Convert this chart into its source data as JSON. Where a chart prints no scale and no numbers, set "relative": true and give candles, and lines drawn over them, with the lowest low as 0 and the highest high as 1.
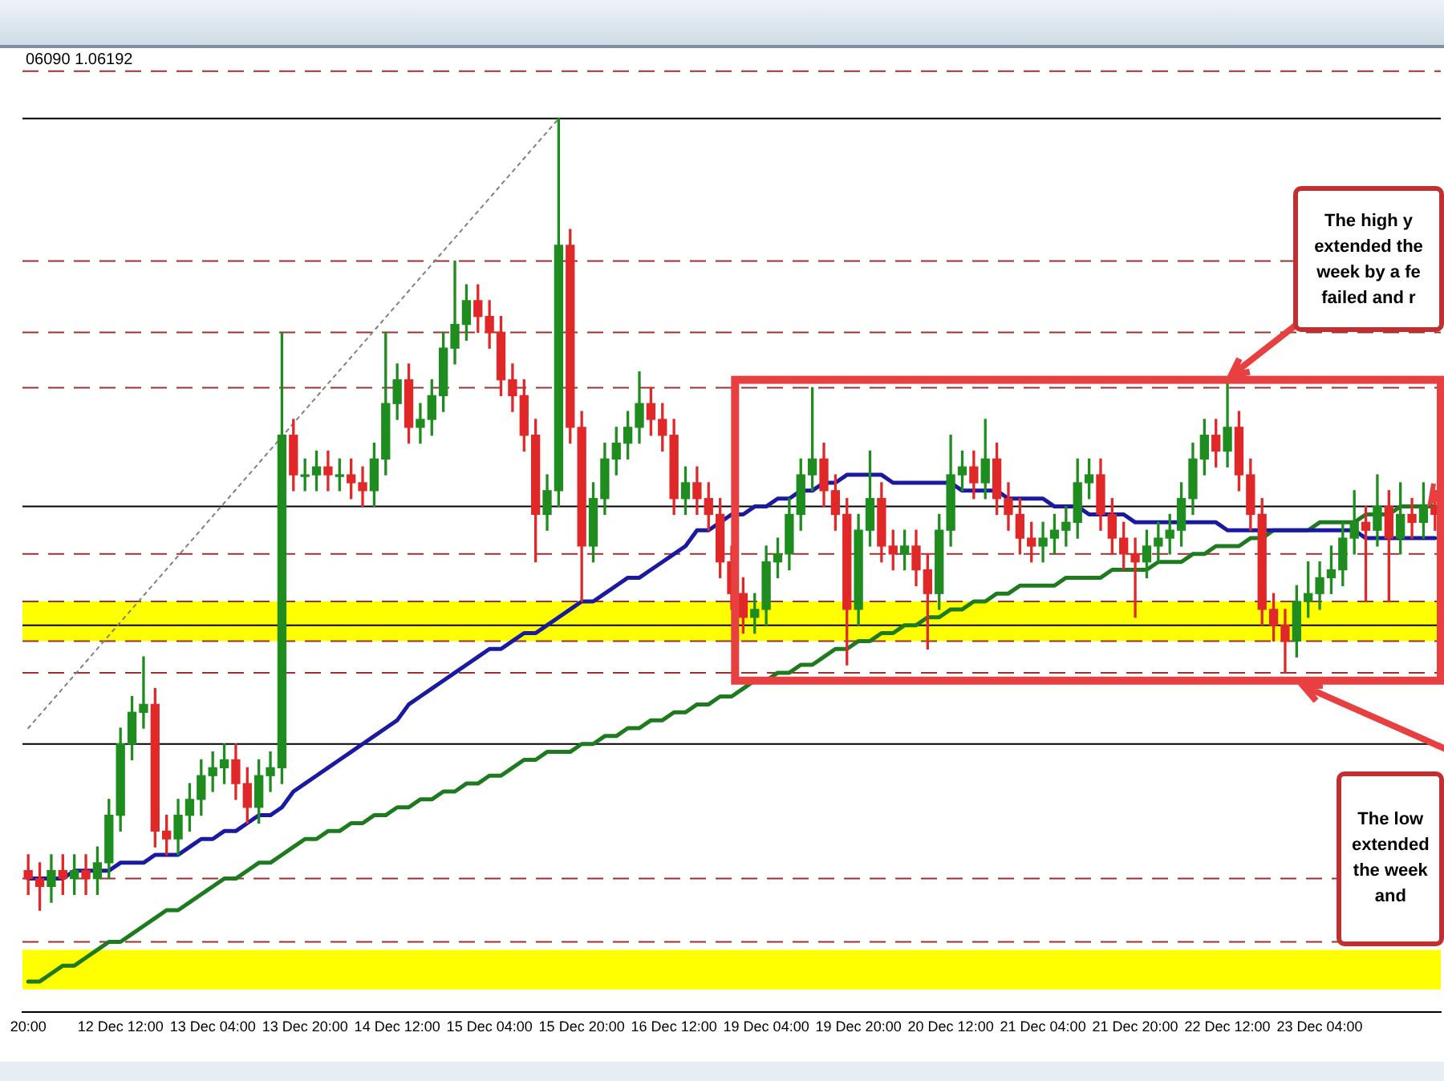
{
  "chart_data": {
    "type": "candlestick",
    "relative": true,
    "marker": "none",
    "categories": [
      "20:00",
      null,
      null,
      null,
      null,
      null,
      null,
      null,
      "12 Dec 12:00",
      null,
      null,
      null,
      null,
      null,
      null,
      null,
      "13 Dec 04:00",
      null,
      null,
      null,
      null,
      null,
      null,
      null,
      "13 Dec 20:00",
      null,
      null,
      null,
      null,
      null,
      null,
      null,
      "14 Dec 12:00",
      null,
      null,
      null,
      null,
      null,
      null,
      null,
      "15 Dec 04:00",
      null,
      null,
      null,
      null,
      null,
      null,
      null,
      "15 Dec 20:00",
      null,
      null,
      null,
      null,
      null,
      null,
      null,
      "16 Dec 12:00",
      null,
      null,
      null,
      null,
      null,
      null,
      null,
      "19 Dec 04:00",
      null,
      null,
      null,
      null,
      null,
      null,
      null,
      "19 Dec 20:00",
      null,
      null,
      null,
      null,
      null,
      null,
      null,
      "20 Dec 12:00",
      null,
      null,
      null,
      null,
      null,
      null,
      null,
      "21 Dec 04:00",
      null,
      null,
      null,
      null,
      null,
      null,
      null,
      "21 Dec 20:00",
      null,
      null,
      null,
      null,
      null,
      null,
      null,
      "22 Dec 12:00",
      null,
      null,
      null,
      null,
      null,
      null,
      null,
      "23 Dec 04:00",
      null,
      null,
      null,
      null,
      null,
      null,
      null,
      null,
      null,
      null
    ],
    "ohlc": [
      [
        0.05,
        0.07,
        0.02,
        0.04
      ],
      [
        0.04,
        0.06,
        0,
        0.03
      ],
      [
        0.03,
        0.07,
        0.01,
        0.05
      ],
      [
        0.05,
        0.07,
        0.02,
        0.04
      ],
      [
        0.04,
        0.07,
        0.02,
        0.05
      ],
      [
        0.05,
        0.07,
        0.02,
        0.04
      ],
      [
        0.04,
        0.08,
        0.02,
        0.06
      ],
      [
        0.06,
        0.14,
        0.04,
        0.12
      ],
      [
        0.12,
        0.23,
        0.1,
        0.21
      ],
      [
        0.21,
        0.27,
        0.19,
        0.25
      ],
      [
        0.25,
        0.32,
        0.23,
        0.26
      ],
      [
        0.26,
        0.28,
        0.08,
        0.1
      ],
      [
        0.1,
        0.12,
        0.07,
        0.09
      ],
      [
        0.09,
        0.14,
        0.07,
        0.12
      ],
      [
        0.12,
        0.16,
        0.1,
        0.14
      ],
      [
        0.14,
        0.19,
        0.12,
        0.17
      ],
      [
        0.17,
        0.2,
        0.15,
        0.18
      ],
      [
        0.18,
        0.21,
        0.16,
        0.19
      ],
      [
        0.19,
        0.21,
        0.14,
        0.16
      ],
      [
        0.16,
        0.18,
        0.11,
        0.13
      ],
      [
        0.13,
        0.19,
        0.11,
        0.17
      ],
      [
        0.17,
        0.2,
        0.15,
        0.18
      ],
      [
        0.18,
        0.73,
        0.16,
        0.6
      ],
      [
        0.6,
        0.62,
        0.53,
        0.55
      ],
      [
        0.55,
        0.57,
        0.53,
        0.55
      ],
      [
        0.55,
        0.58,
        0.53,
        0.56
      ],
      [
        0.56,
        0.58,
        0.53,
        0.55
      ],
      [
        0.55,
        0.57,
        0.53,
        0.55
      ],
      [
        0.55,
        0.57,
        0.52,
        0.54
      ],
      [
        0.54,
        0.56,
        0.51,
        0.53
      ],
      [
        0.53,
        0.59,
        0.51,
        0.57
      ],
      [
        0.57,
        0.73,
        0.55,
        0.64
      ],
      [
        0.64,
        0.69,
        0.62,
        0.67
      ],
      [
        0.67,
        0.69,
        0.59,
        0.61
      ],
      [
        0.61,
        0.64,
        0.59,
        0.62
      ],
      [
        0.62,
        0.67,
        0.6,
        0.65
      ],
      [
        0.65,
        0.73,
        0.63,
        0.71
      ],
      [
        0.71,
        0.82,
        0.69,
        0.74
      ],
      [
        0.74,
        0.79,
        0.72,
        0.77
      ],
      [
        0.77,
        0.79,
        0.73,
        0.75
      ],
      [
        0.75,
        0.77,
        0.71,
        0.73
      ],
      [
        0.73,
        0.75,
        0.65,
        0.67
      ],
      [
        0.67,
        0.69,
        0.63,
        0.65
      ],
      [
        0.65,
        0.67,
        0.58,
        0.6
      ],
      [
        0.6,
        0.62,
        0.44,
        0.5
      ],
      [
        0.5,
        0.55,
        0.48,
        0.53
      ],
      [
        0.53,
        1,
        0.51,
        0.84
      ],
      [
        0.84,
        0.86,
        0.59,
        0.61
      ],
      [
        0.61,
        0.63,
        0.39,
        0.46
      ],
      [
        0.46,
        0.54,
        0.44,
        0.52
      ],
      [
        0.52,
        0.59,
        0.5,
        0.57
      ],
      [
        0.57,
        0.61,
        0.55,
        0.59
      ],
      [
        0.59,
        0.63,
        0.57,
        0.61
      ],
      [
        0.61,
        0.68,
        0.59,
        0.64
      ],
      [
        0.64,
        0.66,
        0.6,
        0.62
      ],
      [
        0.62,
        0.64,
        0.58,
        0.6
      ],
      [
        0.6,
        0.62,
        0.5,
        0.52
      ],
      [
        0.52,
        0.56,
        0.5,
        0.54
      ],
      [
        0.54,
        0.56,
        0.5,
        0.52
      ],
      [
        0.52,
        0.54,
        0.48,
        0.5
      ],
      [
        0.5,
        0.52,
        0.42,
        0.44
      ],
      [
        0.44,
        0.46,
        0.38,
        0.4
      ],
      [
        0.4,
        0.42,
        0.35,
        0.37
      ],
      [
        0.37,
        0.4,
        0.35,
        0.38
      ],
      [
        0.38,
        0.46,
        0.36,
        0.44
      ],
      [
        0.44,
        0.47,
        0.42,
        0.45
      ],
      [
        0.45,
        0.52,
        0.43,
        0.5
      ],
      [
        0.5,
        0.57,
        0.48,
        0.55
      ],
      [
        0.55,
        0.66,
        0.53,
        0.57
      ],
      [
        0.57,
        0.59,
        0.51,
        0.53
      ],
      [
        0.53,
        0.55,
        0.48,
        0.5
      ],
      [
        0.5,
        0.52,
        0.31,
        0.38
      ],
      [
        0.38,
        0.5,
        0.36,
        0.48
      ],
      [
        0.48,
        0.58,
        0.46,
        0.52
      ],
      [
        0.52,
        0.54,
        0.44,
        0.46
      ],
      [
        0.46,
        0.48,
        0.43,
        0.45
      ],
      [
        0.45,
        0.48,
        0.43,
        0.46
      ],
      [
        0.46,
        0.48,
        0.41,
        0.43
      ],
      [
        0.43,
        0.45,
        0.33,
        0.4
      ],
      [
        0.4,
        0.5,
        0.38,
        0.48
      ],
      [
        0.48,
        0.6,
        0.46,
        0.55
      ],
      [
        0.55,
        0.58,
        0.53,
        0.56
      ],
      [
        0.56,
        0.58,
        0.52,
        0.54
      ],
      [
        0.54,
        0.62,
        0.52,
        0.57
      ],
      [
        0.57,
        0.59,
        0.5,
        0.52
      ],
      [
        0.52,
        0.54,
        0.48,
        0.5
      ],
      [
        0.5,
        0.52,
        0.45,
        0.47
      ],
      [
        0.47,
        0.49,
        0.44,
        0.46
      ],
      [
        0.46,
        0.49,
        0.44,
        0.47
      ],
      [
        0.47,
        0.5,
        0.45,
        0.48
      ],
      [
        0.48,
        0.51,
        0.46,
        0.49
      ],
      [
        0.49,
        0.57,
        0.47,
        0.54
      ],
      [
        0.54,
        0.57,
        0.52,
        0.55
      ],
      [
        0.55,
        0.57,
        0.48,
        0.5
      ],
      [
        0.5,
        0.52,
        0.45,
        0.47
      ],
      [
        0.47,
        0.49,
        0.43,
        0.45
      ],
      [
        0.45,
        0.47,
        0.37,
        0.44
      ],
      [
        0.44,
        0.48,
        0.42,
        0.46
      ],
      [
        0.46,
        0.49,
        0.44,
        0.47
      ],
      [
        0.47,
        0.5,
        0.45,
        0.48
      ],
      [
        0.48,
        0.54,
        0.46,
        0.52
      ],
      [
        0.52,
        0.59,
        0.5,
        0.57
      ],
      [
        0.57,
        0.62,
        0.55,
        0.6
      ],
      [
        0.6,
        0.62,
        0.56,
        0.58
      ],
      [
        0.58,
        0.67,
        0.56,
        0.61
      ],
      [
        0.61,
        0.63,
        0.53,
        0.55
      ],
      [
        0.55,
        0.57,
        0.48,
        0.5
      ],
      [
        0.5,
        0.52,
        0.36,
        0.38
      ],
      [
        0.38,
        0.4,
        0.34,
        0.36
      ],
      [
        0.36,
        0.38,
        0.3,
        0.34
      ],
      [
        0.34,
        0.41,
        0.32,
        0.39
      ],
      [
        0.39,
        0.44,
        0.37,
        0.4
      ],
      [
        0.4,
        0.44,
        0.38,
        0.42
      ],
      [
        0.42,
        0.46,
        0.4,
        0.43
      ],
      [
        0.43,
        0.49,
        0.41,
        0.47
      ],
      [
        0.47,
        0.53,
        0.45,
        0.49
      ],
      [
        0.49,
        0.51,
        0.39,
        0.48
      ],
      [
        0.48,
        0.55,
        0.46,
        0.51
      ],
      [
        0.51,
        0.53,
        0.39,
        0.47
      ],
      [
        0.47,
        0.54,
        0.45,
        0.5
      ],
      [
        0.5,
        0.52,
        0.47,
        0.49
      ],
      [
        0.49,
        0.54,
        0.47,
        0.51
      ],
      [
        0.51,
        0.53,
        0.48,
        0.5
      ]
    ],
    "series": [
      {
        "type": "line",
        "color": "#1a1aa0",
        "values": [
          0.04,
          0.04,
          0.04,
          0.04,
          0.05,
          0.05,
          0.05,
          0.05,
          0.06,
          0.06,
          0.06,
          0.07,
          0.07,
          0.07,
          0.08,
          0.09,
          0.09,
          0.1,
          0.1,
          0.11,
          0.12,
          0.12,
          0.13,
          0.15,
          0.16,
          0.17,
          0.18,
          0.19,
          0.2,
          0.21,
          0.22,
          0.23,
          0.24,
          0.26,
          0.27,
          0.28,
          0.29,
          0.3,
          0.31,
          0.32,
          0.33,
          0.33,
          0.34,
          0.35,
          0.35,
          0.36,
          0.37,
          0.38,
          0.39,
          0.39,
          0.4,
          0.41,
          0.42,
          0.42,
          0.43,
          0.44,
          0.45,
          0.46,
          0.48,
          0.48,
          0.49,
          0.5,
          0.5,
          0.51,
          0.51,
          0.52,
          0.52,
          0.53,
          0.53,
          0.54,
          0.54,
          0.55,
          0.55,
          0.55,
          0.55,
          0.54,
          0.54,
          0.54,
          0.54,
          0.54,
          0.54,
          0.53,
          0.53,
          0.53,
          0.53,
          0.52,
          0.52,
          0.52,
          0.52,
          0.51,
          0.51,
          0.51,
          0.5,
          0.5,
          0.5,
          0.5,
          0.49,
          0.49,
          0.49,
          0.49,
          0.49,
          0.49,
          0.49,
          0.49,
          0.48,
          0.48,
          0.48,
          0.48,
          0.48,
          0.48,
          0.48,
          0.48,
          0.48,
          0.48,
          0.48,
          0.48,
          0.47,
          0.47,
          0.47,
          0.47,
          0.47,
          0.47,
          0.47
        ]
      },
      {
        "type": "line",
        "color": "#1e7a1e",
        "values": [
          -0.09,
          -0.09,
          -0.08,
          -0.07,
          -0.07,
          -0.06,
          -0.05,
          -0.04,
          -0.04,
          -0.03,
          -0.02,
          -0.01,
          0,
          0,
          0.01,
          0.02,
          0.03,
          0.04,
          0.04,
          0.05,
          0.06,
          0.06,
          0.07,
          0.08,
          0.09,
          0.09,
          0.1,
          0.1,
          0.11,
          0.11,
          0.12,
          0.12,
          0.13,
          0.13,
          0.14,
          0.14,
          0.15,
          0.15,
          0.16,
          0.16,
          0.17,
          0.17,
          0.18,
          0.19,
          0.19,
          0.2,
          0.2,
          0.2,
          0.21,
          0.21,
          0.22,
          0.22,
          0.23,
          0.23,
          0.24,
          0.24,
          0.25,
          0.25,
          0.26,
          0.26,
          0.27,
          0.27,
          0.28,
          0.29,
          0.29,
          0.3,
          0.3,
          0.31,
          0.31,
          0.32,
          0.33,
          0.33,
          0.34,
          0.34,
          0.35,
          0.35,
          0.36,
          0.36,
          0.37,
          0.37,
          0.38,
          0.38,
          0.39,
          0.39,
          0.4,
          0.4,
          0.41,
          0.41,
          0.41,
          0.41,
          0.42,
          0.42,
          0.42,
          0.42,
          0.43,
          0.43,
          0.43,
          0.43,
          0.44,
          0.44,
          0.44,
          0.45,
          0.45,
          0.46,
          0.46,
          0.46,
          0.47,
          0.47,
          0.48,
          0.48,
          0.48,
          0.48,
          0.49,
          0.49,
          0.49,
          0.49,
          0.5,
          0.5,
          0.5,
          0.51,
          0.51,
          0.51,
          0.51
        ]
      },
      {
        "type": "line",
        "color": "#808080",
        "line_style": "dotted",
        "values": [
          0.23,
          null,
          null,
          null,
          null,
          null,
          null,
          null,
          null,
          null,
          null,
          null,
          null,
          null,
          null,
          null,
          null,
          null,
          null,
          null,
          null,
          null,
          null,
          null,
          null,
          null,
          null,
          null,
          null,
          null,
          null,
          null,
          null,
          null,
          null,
          null,
          null,
          null,
          null,
          null,
          null,
          null,
          null,
          null,
          null,
          null,
          1,
          null,
          null,
          null,
          null,
          null,
          null,
          null,
          null,
          null,
          null,
          null,
          null,
          null,
          null,
          null,
          null,
          null,
          null,
          null,
          null,
          null,
          null,
          null,
          null,
          null,
          null,
          null,
          null,
          null,
          null,
          null,
          null,
          null,
          null,
          null,
          null,
          null,
          null,
          null,
          null,
          null,
          null,
          null,
          null,
          null,
          null,
          null,
          null,
          null,
          null,
          null,
          null,
          null,
          null,
          null,
          null,
          null,
          null,
          null,
          null,
          null,
          null,
          null,
          null,
          null,
          null,
          null,
          null,
          null,
          null,
          null,
          null,
          null,
          null,
          null,
          null
        ]
      }
    ],
    "bands": [
      {
        "axis": "y",
        "from": 0.34,
        "to": 0.39,
        "color": "#ffff00"
      },
      {
        "axis": "y",
        "from": -0.1,
        "to": -0.05,
        "color": "#ffff00"
      }
    ],
    "ref_lines": [
      {
        "axis": "y",
        "value": 1.06,
        "color": "#a03030",
        "line_style": "dashed"
      },
      {
        "axis": "y",
        "value": 1.0,
        "color": "#000000",
        "line_style": "solid"
      },
      {
        "axis": "y",
        "value": 0.82,
        "color": "#a03030",
        "line_style": "dashed"
      },
      {
        "axis": "y",
        "value": 0.73,
        "color": "#a03030",
        "line_style": "dashed"
      },
      {
        "axis": "y",
        "value": 0.66,
        "color": "#a03030",
        "line_style": "dashed"
      },
      {
        "axis": "y",
        "value": 0.51,
        "color": "#000000",
        "line_style": "solid"
      },
      {
        "axis": "y",
        "value": 0.45,
        "color": "#a03030",
        "line_style": "dashed"
      },
      {
        "axis": "y",
        "value": 0.39,
        "color": "#a03030",
        "line_style": "dashed"
      },
      {
        "axis": "y",
        "value": 0.36,
        "color": "#000000",
        "line_style": "solid"
      },
      {
        "axis": "y",
        "value": 0.34,
        "color": "#a03030",
        "line_style": "dashed"
      },
      {
        "axis": "y",
        "value": 0.3,
        "color": "#a03030",
        "line_style": "dashed"
      },
      {
        "axis": "y",
        "value": 0.21,
        "color": "#000000",
        "line_style": "solid"
      },
      {
        "axis": "y",
        "value": 0.04,
        "color": "#a03030",
        "line_style": "dashed"
      },
      {
        "axis": "y",
        "value": -0.04,
        "color": "#a03030",
        "line_style": "dashed"
      }
    ],
    "annotations": [
      "06090 1.06192",
      "The high y\nextended the\nweek by a fe\nfailed and r",
      "The low\nextended\nthe week\nand"
    ]
  }
}
